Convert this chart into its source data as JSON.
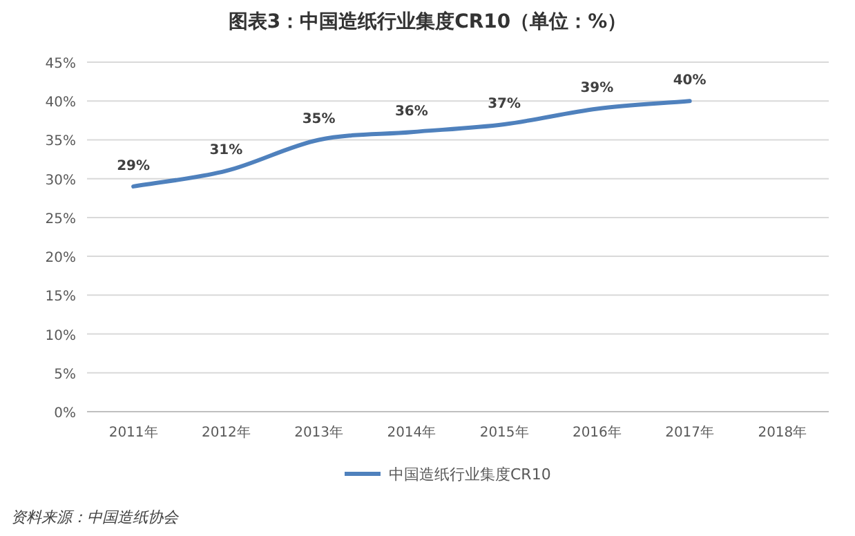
{
  "chart_data": {
    "type": "line",
    "title": "图表3：中国造纸行业集度CR10（单位：%）",
    "categories": [
      "2011年",
      "2012年",
      "2013年",
      "2014年",
      "2015年",
      "2016年",
      "2017年",
      "2018年"
    ],
    "series": [
      {
        "name": "中国造纸行业集度CR10",
        "color": "#4f81bd",
        "values": [
          29,
          31,
          35,
          36,
          37,
          39,
          40,
          null
        ],
        "value_labels": [
          "29%",
          "31%",
          "35%",
          "36%",
          "37%",
          "39%",
          "40%",
          null
        ]
      }
    ],
    "ylim": [
      0,
      45
    ],
    "yticks": [
      {
        "value": 0,
        "label": "0%"
      },
      {
        "value": 5,
        "label": "5%"
      },
      {
        "value": 10,
        "label": "10%"
      },
      {
        "value": 15,
        "label": "15%"
      },
      {
        "value": 20,
        "label": "20%"
      },
      {
        "value": 25,
        "label": "25%"
      },
      {
        "value": 30,
        "label": "30%"
      },
      {
        "value": 35,
        "label": "35%"
      },
      {
        "value": 40,
        "label": "40%"
      },
      {
        "value": 45,
        "label": "45%"
      }
    ],
    "grid": "y",
    "legend": "bottom",
    "marker": "none",
    "line_style": "solid",
    "annotations": [
      "资料来源：中国造纸协会"
    ]
  }
}
